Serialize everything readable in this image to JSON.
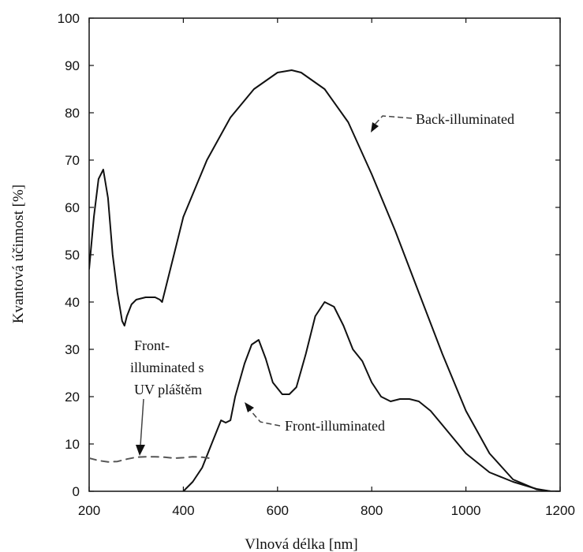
{
  "chart_data": {
    "type": "line",
    "xlabel": "Vlnová délka [nm]",
    "ylabel": "Kvantová účinnost [%]",
    "xlim": [
      200,
      1200
    ],
    "ylim": [
      0,
      100
    ],
    "xticks": [
      200,
      400,
      600,
      800,
      1000,
      1200
    ],
    "yticks": [
      0,
      10,
      20,
      30,
      40,
      50,
      60,
      70,
      80,
      90,
      100
    ],
    "grid": false,
    "series": [
      {
        "name": "Back-illuminated",
        "style": "solid",
        "x": [
          200,
          210,
          220,
          230,
          240,
          250,
          260,
          270,
          275,
          280,
          290,
          300,
          320,
          340,
          350,
          355,
          360,
          380,
          400,
          450,
          500,
          550,
          600,
          630,
          650,
          700,
          750,
          800,
          850,
          900,
          950,
          1000,
          1050,
          1100,
          1150,
          1180,
          1200
        ],
        "y": [
          47,
          58,
          66,
          68,
          62,
          50,
          42,
          36,
          35,
          37,
          39.5,
          40.5,
          41,
          41,
          40.5,
          40,
          42,
          50,
          58,
          70,
          79,
          85,
          88.5,
          89,
          88.5,
          85,
          78,
          67,
          55,
          42,
          29,
          17,
          8,
          2.5,
          0.4,
          0,
          0
        ]
      },
      {
        "name": "Front-illuminated",
        "style": "solid",
        "x": [
          385,
          400,
          420,
          440,
          460,
          480,
          490,
          500,
          510,
          530,
          545,
          560,
          575,
          590,
          610,
          625,
          640,
          660,
          680,
          700,
          720,
          740,
          760,
          780,
          800,
          820,
          840,
          860,
          880,
          900,
          925,
          950,
          1000,
          1050,
          1100,
          1150,
          1180
        ],
        "y": [
          -2,
          0,
          2,
          5,
          10,
          15,
          14.5,
          15,
          20,
          27,
          31,
          32,
          28,
          23,
          20.5,
          20.5,
          22,
          29,
          37,
          40,
          39,
          35,
          30,
          27.5,
          23,
          20,
          19,
          19.5,
          19.5,
          19,
          17,
          14,
          8,
          4,
          2,
          0.5,
          0
        ]
      },
      {
        "name": "Front-illuminated s UV pláštěm",
        "style": "dashed",
        "x": [
          200,
          220,
          240,
          260,
          280,
          300,
          320,
          340,
          360,
          380,
          400,
          420,
          440,
          455
        ],
        "y": [
          7,
          6.5,
          6.2,
          6.3,
          6.8,
          7.2,
          7.3,
          7.3,
          7.2,
          7.0,
          7.1,
          7.3,
          7.2,
          7.0
        ]
      }
    ],
    "annotations": [
      {
        "lines": [
          "Back-illuminated"
        ],
        "series": "Back-illuminated"
      },
      {
        "lines": [
          "Front-illuminated"
        ],
        "series": "Front-illuminated"
      },
      {
        "lines": [
          "Front-",
          "illuminated s",
          "UV pláštěm"
        ],
        "series": "Front-illuminated s UV pláštěm"
      }
    ]
  }
}
